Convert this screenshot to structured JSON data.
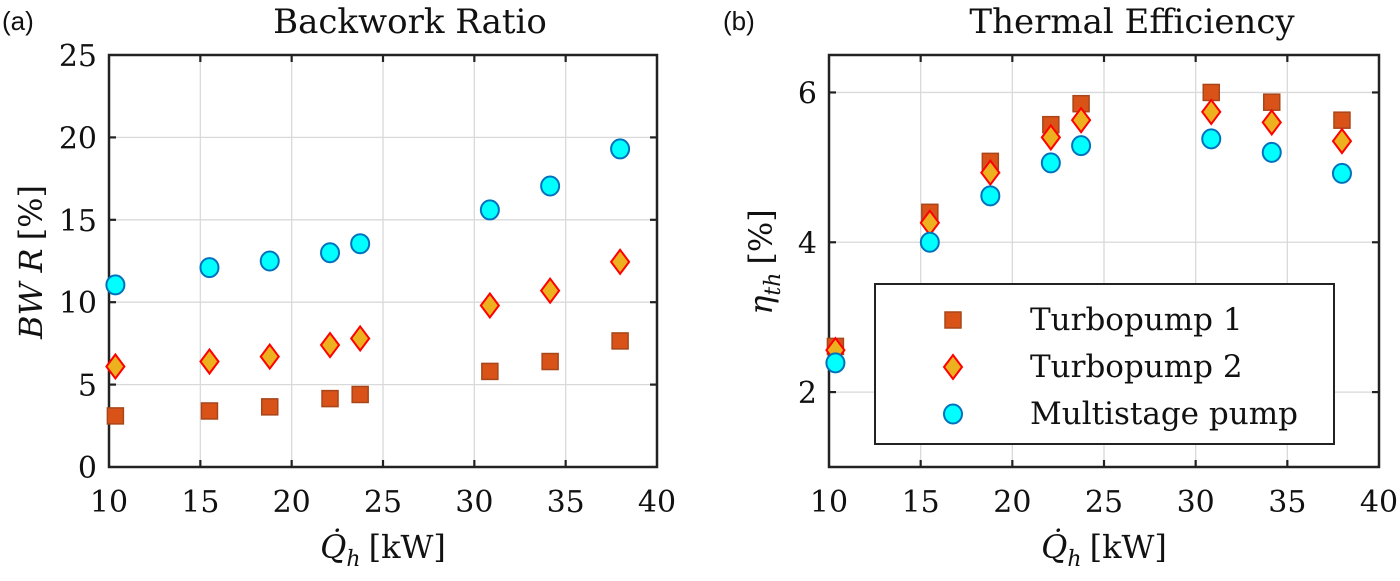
{
  "chart_data": [
    {
      "type": "scatter",
      "panel_label": "(a)",
      "title": "Backwork Ratio",
      "xlabel": "Q̇h [kW]",
      "xlabel_main": "Q̇",
      "xlabel_sub": "h",
      "xlabel_unit": "[kW]",
      "ylabel": "BWR [%]",
      "ylabel_main": "BW R",
      "ylabel_unit": "[%]",
      "xlim": [
        10,
        40
      ],
      "ylim": [
        0,
        25
      ],
      "xticks": [
        10,
        15,
        20,
        25,
        30,
        35,
        40
      ],
      "yticks": [
        0,
        5,
        10,
        15,
        20,
        25
      ],
      "grid": true,
      "x": [
        10.35,
        15.5,
        18.8,
        22.1,
        23.75,
        30.85,
        34.15,
        37.98
      ],
      "series": [
        {
          "name": "Turbopump 1",
          "marker": "square",
          "values": [
            3.1,
            3.4,
            3.65,
            4.15,
            4.4,
            5.8,
            6.4,
            7.65
          ]
        },
        {
          "name": "Turbopump 2",
          "marker": "diamond",
          "values": [
            6.1,
            6.4,
            6.7,
            7.4,
            7.8,
            9.8,
            10.7,
            12.45
          ]
        },
        {
          "name": "Multistage pump",
          "marker": "circle",
          "values": [
            11.05,
            12.1,
            12.5,
            13.0,
            13.55,
            15.6,
            17.05,
            19.3
          ]
        }
      ]
    },
    {
      "type": "scatter",
      "panel_label": "(b)",
      "title": "Thermal Efficiency",
      "xlabel": "Q̇h [kW]",
      "xlabel_main": "Q̇",
      "xlabel_sub": "h",
      "xlabel_unit": "[kW]",
      "ylabel": "ηth [%]",
      "ylabel_main": "η",
      "ylabel_sub": "th",
      "ylabel_unit": "[%]",
      "xlim": [
        10,
        40
      ],
      "ylim": [
        1,
        6.5
      ],
      "xticks": [
        10,
        15,
        20,
        25,
        30,
        35,
        40
      ],
      "yticks": [
        2,
        4,
        6
      ],
      "grid": true,
      "legend_position": "bottom-center",
      "x": [
        10.35,
        15.5,
        18.8,
        22.1,
        23.75,
        30.85,
        34.15,
        37.98
      ],
      "series": [
        {
          "name": "Turbopump 1",
          "marker": "square",
          "values": [
            2.61,
            4.4,
            5.08,
            5.57,
            5.85,
            6.0,
            5.87,
            5.63
          ]
        },
        {
          "name": "Turbopump 2",
          "marker": "diamond",
          "values": [
            2.56,
            4.26,
            4.93,
            5.4,
            5.63,
            5.74,
            5.6,
            5.35
          ]
        },
        {
          "name": "Multistage pump",
          "marker": "circle",
          "values": [
            2.39,
            4.0,
            4.62,
            5.06,
            5.29,
            5.38,
            5.2,
            4.92
          ]
        }
      ]
    }
  ],
  "legend": {
    "entries": [
      "Turbopump 1",
      "Turbopump 2",
      "Multistage pump"
    ]
  },
  "colors": {
    "square_fill": "#D95319",
    "square_edge": "#A8461A",
    "diamond_fill": "#EDB120",
    "diamond_edge": "#FF0000",
    "circle_fill": "#00FFFF",
    "circle_edge": "#0072BD"
  }
}
